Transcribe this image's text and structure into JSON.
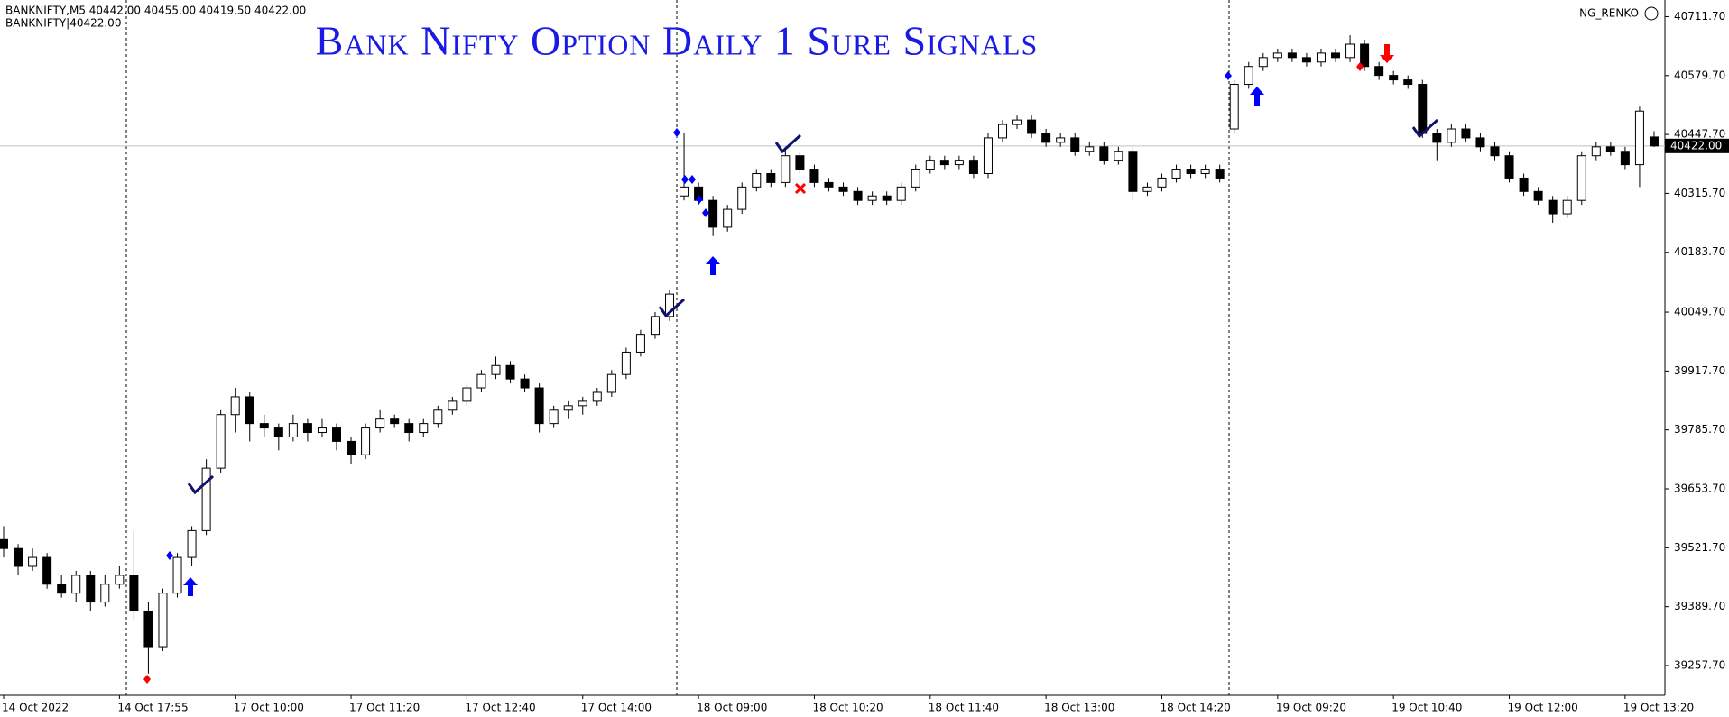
{
  "header": {
    "symbol_line": "BANKNIFTY,M5  40442.00 40455.00 40419.50 40422.00",
    "sub_line": "BANKNIFTY|40422.00",
    "indicator": "NG_RENKO"
  },
  "chart_data": {
    "type": "candlestick",
    "title": "Bank Nifty Option  Daily 1 Sure Signals",
    "categories": [
      "14 Oct 2022",
      null,
      null,
      null,
      null,
      null,
      null,
      null,
      "14 Oct 17:55",
      null,
      null,
      null,
      null,
      null,
      null,
      null,
      "17 Oct 10:00",
      null,
      null,
      null,
      null,
      null,
      null,
      null,
      "17 Oct 11:20",
      null,
      null,
      null,
      null,
      null,
      null,
      null,
      "17 Oct 12:40",
      null,
      null,
      null,
      null,
      null,
      null,
      null,
      "17 Oct 14:00",
      null,
      null,
      null,
      null,
      null,
      null,
      null,
      "18 Oct 09:00",
      null,
      null,
      null,
      null,
      null,
      null,
      null,
      "18 Oct 10:20",
      null,
      null,
      null,
      null,
      null,
      null,
      null,
      "18 Oct 11:40",
      null,
      null,
      null,
      null,
      null,
      null,
      null,
      "18 Oct 13:00",
      null,
      null,
      null,
      null,
      null,
      null,
      null,
      "18 Oct 14:20",
      null,
      null,
      null,
      null,
      null,
      null,
      null,
      "19 Oct 09:20",
      null,
      null,
      null,
      null,
      null,
      null,
      null,
      "19 Oct 10:40",
      null,
      null,
      null,
      null,
      null,
      null,
      null,
      "19 Oct 12:00",
      null,
      null,
      null,
      null,
      null,
      null,
      null,
      "19 Oct 13:20",
      null,
      null
    ],
    "candles": [
      [
        39540,
        39570,
        39500,
        39520
      ],
      [
        39520,
        39530,
        39460,
        39480
      ],
      [
        39480,
        39520,
        39470,
        39500
      ],
      [
        39500,
        39510,
        39430,
        39440
      ],
      [
        39440,
        39460,
        39410,
        39420
      ],
      [
        39420,
        39470,
        39400,
        39460
      ],
      [
        39460,
        39470,
        39380,
        39400
      ],
      [
        39400,
        39460,
        39390,
        39440
      ],
      [
        39440,
        39480,
        39430,
        39460
      ],
      [
        39460,
        39560,
        39360,
        39380
      ],
      [
        39380,
        39400,
        39240,
        39300
      ],
      [
        39300,
        39430,
        39290,
        39420
      ],
      [
        39420,
        39510,
        39410,
        39500
      ],
      [
        39500,
        39570,
        39480,
        39560
      ],
      [
        39560,
        39720,
        39550,
        39700
      ],
      [
        39700,
        39830,
        39690,
        39820
      ],
      [
        39820,
        39880,
        39780,
        39860
      ],
      [
        39860,
        39870,
        39760,
        39800
      ],
      [
        39800,
        39820,
        39770,
        39790
      ],
      [
        39790,
        39800,
        39740,
        39770
      ],
      [
        39770,
        39820,
        39760,
        39800
      ],
      [
        39800,
        39810,
        39760,
        39780
      ],
      [
        39780,
        39810,
        39770,
        39790
      ],
      [
        39790,
        39800,
        39740,
        39760
      ],
      [
        39760,
        39770,
        39710,
        39730
      ],
      [
        39730,
        39800,
        39720,
        39790
      ],
      [
        39790,
        39830,
        39780,
        39810
      ],
      [
        39810,
        39820,
        39790,
        39800
      ],
      [
        39800,
        39810,
        39760,
        39780
      ],
      [
        39780,
        39810,
        39770,
        39800
      ],
      [
        39800,
        39840,
        39790,
        39830
      ],
      [
        39830,
        39860,
        39820,
        39850
      ],
      [
        39850,
        39890,
        39840,
        39880
      ],
      [
        39880,
        39920,
        39870,
        39910
      ],
      [
        39910,
        39950,
        39900,
        39930
      ],
      [
        39930,
        39940,
        39890,
        39900
      ],
      [
        39900,
        39910,
        39870,
        39880
      ],
      [
        39880,
        39890,
        39780,
        39800
      ],
      [
        39800,
        39840,
        39790,
        39830
      ],
      [
        39830,
        39850,
        39810,
        39840
      ],
      [
        39840,
        39860,
        39820,
        39850
      ],
      [
        39850,
        39880,
        39840,
        39870
      ],
      [
        39870,
        39920,
        39860,
        39910
      ],
      [
        39910,
        39970,
        39900,
        39960
      ],
      [
        39960,
        40010,
        39950,
        40000
      ],
      [
        40000,
        40050,
        39990,
        40040
      ],
      [
        40040,
        40100,
        40030,
        40090
      ],
      [
        40310,
        40450,
        40300,
        40330
      ],
      [
        40330,
        40340,
        40290,
        40300
      ],
      [
        40300,
        40310,
        40220,
        40240
      ],
      [
        40240,
        40290,
        40230,
        40280
      ],
      [
        40280,
        40340,
        40270,
        40330
      ],
      [
        40330,
        40370,
        40320,
        40360
      ],
      [
        40360,
        40370,
        40330,
        40340
      ],
      [
        40340,
        40420,
        40330,
        40400
      ],
      [
        40400,
        40410,
        40360,
        40370
      ],
      [
        40370,
        40380,
        40330,
        40340
      ],
      [
        40340,
        40350,
        40320,
        40330
      ],
      [
        40330,
        40340,
        40310,
        40320
      ],
      [
        40320,
        40330,
        40290,
        40300
      ],
      [
        40300,
        40320,
        40290,
        40310
      ],
      [
        40310,
        40320,
        40290,
        40300
      ],
      [
        40300,
        40340,
        40290,
        40330
      ],
      [
        40330,
        40380,
        40320,
        40370
      ],
      [
        40370,
        40400,
        40360,
        40390
      ],
      [
        40390,
        40400,
        40370,
        40380
      ],
      [
        40380,
        40400,
        40370,
        40390
      ],
      [
        40390,
        40400,
        40350,
        40360
      ],
      [
        40360,
        40450,
        40350,
        40440
      ],
      [
        40440,
        40480,
        40430,
        40470
      ],
      [
        40470,
        40490,
        40460,
        40480
      ],
      [
        40480,
        40490,
        40440,
        40450
      ],
      [
        40450,
        40460,
        40420,
        40430
      ],
      [
        40430,
        40450,
        40420,
        40440
      ],
      [
        40440,
        40450,
        40400,
        40410
      ],
      [
        40410,
        40430,
        40400,
        40420
      ],
      [
        40420,
        40430,
        40380,
        40390
      ],
      [
        40390,
        40420,
        40380,
        40410
      ],
      [
        40410,
        40420,
        40300,
        40320
      ],
      [
        40320,
        40340,
        40310,
        40330
      ],
      [
        40330,
        40360,
        40320,
        40350
      ],
      [
        40350,
        40380,
        40340,
        40370
      ],
      [
        40370,
        40380,
        40350,
        40360
      ],
      [
        40360,
        40380,
        40350,
        40370
      ],
      [
        40370,
        40380,
        40340,
        40350
      ],
      [
        40460,
        40570,
        40450,
        40560
      ],
      [
        40560,
        40610,
        40550,
        40600
      ],
      [
        40600,
        40630,
        40590,
        40620
      ],
      [
        40620,
        40640,
        40610,
        40630
      ],
      [
        40630,
        40640,
        40610,
        40620
      ],
      [
        40620,
        40630,
        40600,
        40610
      ],
      [
        40610,
        40640,
        40600,
        40630
      ],
      [
        40630,
        40640,
        40610,
        40620
      ],
      [
        40620,
        40670,
        40610,
        40650
      ],
      [
        40650,
        40660,
        40590,
        40600
      ],
      [
        40600,
        40610,
        40570,
        40580
      ],
      [
        40580,
        40590,
        40560,
        40570
      ],
      [
        40570,
        40580,
        40550,
        40560
      ],
      [
        40560,
        40570,
        40440,
        40450
      ],
      [
        40450,
        40460,
        40390,
        40430
      ],
      [
        40430,
        40470,
        40420,
        40460
      ],
      [
        40460,
        40470,
        40430,
        40440
      ],
      [
        40440,
        40450,
        40410,
        40420
      ],
      [
        40420,
        40430,
        40390,
        40400
      ],
      [
        40400,
        40410,
        40340,
        40350
      ],
      [
        40350,
        40360,
        40310,
        40320
      ],
      [
        40320,
        40330,
        40290,
        40300
      ],
      [
        40300,
        40310,
        40250,
        40270
      ],
      [
        40270,
        40310,
        40260,
        40300
      ],
      [
        40300,
        40410,
        40290,
        40400
      ],
      [
        40400,
        40430,
        40390,
        40420
      ],
      [
        40420,
        40430,
        40400,
        40410
      ],
      [
        40410,
        40420,
        40370,
        40380
      ],
      [
        40380,
        40510,
        40330,
        40500
      ],
      [
        40442,
        40455,
        40419.5,
        40422
      ]
    ],
    "up_color": "#ffffff",
    "down_color": "#000000",
    "ylim": [
      39191,
      40749
    ],
    "yticks": [
      {
        "value": 40711.7,
        "label": "40711.70"
      },
      {
        "value": 40579.7,
        "label": "40579.70"
      },
      {
        "value": 40447.7,
        "label": "40447.70"
      },
      {
        "value": 40315.7,
        "label": "40315.70"
      },
      {
        "value": 40183.7,
        "label": "40183.70"
      },
      {
        "value": 40049.7,
        "label": "40049.70"
      },
      {
        "value": 39917.7,
        "label": "39917.70"
      },
      {
        "value": 39785.7,
        "label": "39785.70"
      },
      {
        "value": 39653.7,
        "label": "39653.70"
      },
      {
        "value": 39521.7,
        "label": "39521.70"
      },
      {
        "value": 39389.7,
        "label": "39389.70"
      },
      {
        "value": 39257.7,
        "label": "39257.70"
      }
    ],
    "last_price": {
      "value": 40422,
      "label": "40422.00"
    },
    "grid": false
  }
}
